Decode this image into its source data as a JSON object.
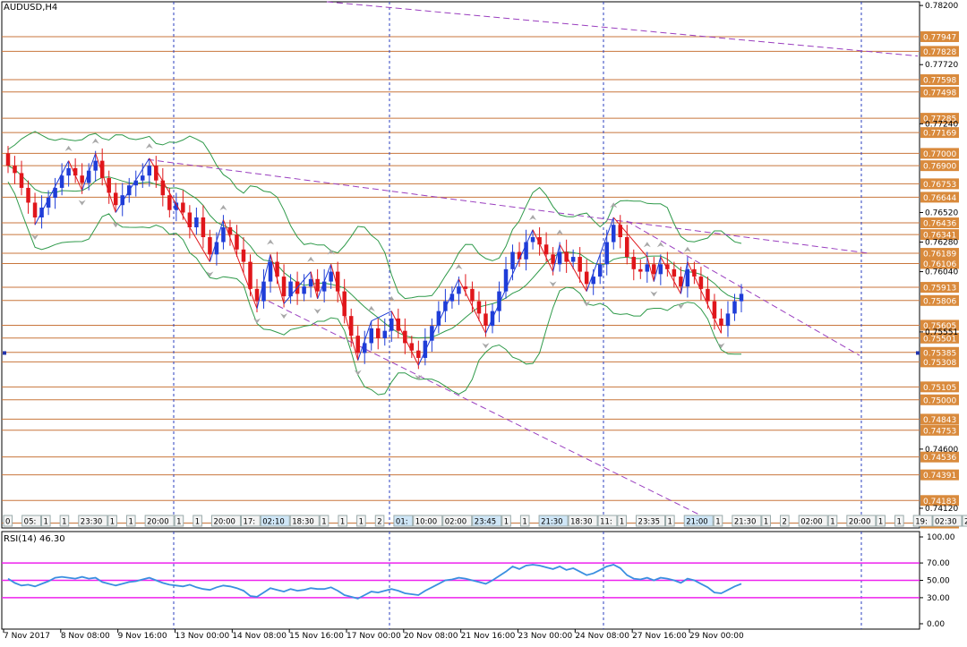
{
  "window": {
    "title": "AUDUSD,H4"
  },
  "indicator": {
    "title": "RSI(14) 46.30"
  },
  "colors": {
    "bull": "#1f3dd8",
    "bear": "#e0161b",
    "level_line": "#c8763c",
    "level_label_bg": "#d98a3c",
    "band": "#2f9a4a",
    "trend": "#9a3fbf",
    "zigzag_red": "#e0161b",
    "zigzag_blue": "#1f3dd8",
    "grid": "#2b3fbf",
    "rsi_line": "#3a8fe0",
    "rsi_level": "#ee22ee"
  },
  "price_axis": {
    "ticks": [
      "0.78200",
      "0.77720",
      "0.77240",
      "0.76520",
      "0.76280",
      "0.76040",
      "0.75551",
      "0.74600",
      "0.74120"
    ]
  },
  "level_labels": [
    "0.77947",
    "0.77828",
    "0.77598",
    "0.77498",
    "0.77285",
    "0.77169",
    "0.77000",
    "0.76900",
    "0.76753",
    "0.76644",
    "0.76436",
    "0.76341",
    "0.76189",
    "0.76106",
    "0.75913",
    "0.75806",
    "0.75605",
    "0.75501",
    "0.75385",
    "0.75308",
    "0.75105",
    "0.75000",
    "0.74843",
    "0.74753",
    "0.74536",
    "0.74391",
    "0.74183",
    "0.74000"
  ],
  "time_axis": {
    "labels": [
      "7 Nov 2017",
      "8 Nov 08:00",
      "9 Nov 16:00",
      "13 Nov 00:00",
      "14 Nov 08:00",
      "15 Nov 16:00",
      "17 Nov 00:00",
      "20 Nov 08:00",
      "21 Nov 16:00",
      "23 Nov 00:00",
      "24 Nov 08:00",
      "27 Nov 16:00",
      "29 Nov 00:00"
    ]
  },
  "time_strip": [
    "0",
    "05:",
    "1",
    "1",
    "23:30",
    "1",
    "1",
    "20:00",
    "1",
    "1",
    "20:00",
    "17:",
    "02:10",
    "18:30",
    "1",
    "1",
    "1",
    "2",
    "01:",
    "10:00",
    "02:00",
    "23:45",
    "1",
    "1",
    "21:30",
    "18:30",
    "11:",
    "1",
    "23:35",
    "1",
    "21:00",
    "1",
    "21:30",
    "1",
    "2",
    "02:00",
    "1",
    "20:00",
    "1",
    "1",
    "19:",
    "02:30",
    "20",
    "02:00",
    "17:15"
  ],
  "rsi_axis": {
    "ticks": [
      "100.00",
      "70.00",
      "50.00",
      "30.00",
      "0.00"
    ]
  },
  "chart_data": [
    {
      "type": "candlestick",
      "title": "AUDUSD,H4",
      "symbol": "AUDUSD",
      "timeframe": "H4",
      "ylim": [
        0.7396,
        0.7823
      ],
      "x_labels": [
        "7 Nov 2017",
        "8 Nov 08:00",
        "9 Nov 16:00",
        "13 Nov 00:00",
        "14 Nov 08:00",
        "15 Nov 16:00",
        "17 Nov 00:00",
        "20 Nov 08:00",
        "21 Nov 16:00",
        "23 Nov 00:00",
        "24 Nov 08:00",
        "27 Nov 16:00",
        "29 Nov 00:00"
      ],
      "horizontal_levels": [
        0.77947,
        0.77828,
        0.77598,
        0.77498,
        0.77285,
        0.77169,
        0.77,
        0.769,
        0.76753,
        0.76644,
        0.76436,
        0.76341,
        0.76189,
        0.76106,
        0.75913,
        0.75806,
        0.75605,
        0.75501,
        0.75385,
        0.75308,
        0.75105,
        0.75,
        0.74843,
        0.74753,
        0.74536,
        0.74391,
        0.74183,
        0.74
      ],
      "close_path": [
        0.769,
        0.7684,
        0.7672,
        0.766,
        0.7648,
        0.7656,
        0.7664,
        0.7672,
        0.7682,
        0.7688,
        0.7682,
        0.7676,
        0.7686,
        0.7694,
        0.768,
        0.7668,
        0.7658,
        0.7666,
        0.7674,
        0.7678,
        0.7682,
        0.769,
        0.7678,
        0.7666,
        0.7654,
        0.766,
        0.7652,
        0.764,
        0.7648,
        0.7632,
        0.7618,
        0.7628,
        0.764,
        0.7634,
        0.7622,
        0.7612,
        0.759,
        0.758,
        0.7596,
        0.7612,
        0.76,
        0.7584,
        0.7596,
        0.7586,
        0.7592,
        0.7598,
        0.7588,
        0.7596,
        0.7604,
        0.7588,
        0.7568,
        0.7552,
        0.7538,
        0.7546,
        0.7558,
        0.755,
        0.7556,
        0.7566,
        0.7556,
        0.7546,
        0.754,
        0.7534,
        0.7548,
        0.756,
        0.7572,
        0.758,
        0.7586,
        0.7592,
        0.759,
        0.758,
        0.757,
        0.756,
        0.7572,
        0.7588,
        0.7606,
        0.762,
        0.7614,
        0.7628,
        0.7632,
        0.7626,
        0.7618,
        0.761,
        0.762,
        0.7612,
        0.7616,
        0.7604,
        0.7594,
        0.76,
        0.761,
        0.7628,
        0.7642,
        0.7632,
        0.7616,
        0.7606,
        0.7604,
        0.761,
        0.7602,
        0.761,
        0.7606,
        0.76,
        0.7592,
        0.7606,
        0.76,
        0.759,
        0.758,
        0.7566,
        0.756,
        0.757,
        0.758,
        0.7586
      ],
      "trendlines": "descending channel, dashed",
      "indicators": [
        "Bollinger Bands",
        "ZigZag",
        "Fractals"
      ],
      "grid": true
    },
    {
      "type": "line",
      "title": "RSI(14) 46.30",
      "ylim": [
        0,
        100
      ],
      "y_ticks": [
        100,
        70,
        50,
        30,
        0
      ],
      "levels": [
        70,
        50,
        30
      ],
      "last_value": 46.3,
      "values": [
        52,
        47,
        44,
        45,
        43,
        46,
        49,
        53,
        54,
        53,
        52,
        54,
        52,
        53,
        48,
        46,
        44,
        46,
        48,
        49,
        51,
        53,
        50,
        47,
        45,
        44,
        43,
        45,
        42,
        40,
        39,
        42,
        44,
        43,
        41,
        38,
        32,
        31,
        36,
        41,
        39,
        37,
        40,
        38,
        39,
        41,
        40,
        40,
        42,
        38,
        33,
        31,
        29,
        33,
        37,
        36,
        38,
        40,
        38,
        35,
        34,
        33,
        38,
        42,
        46,
        50,
        51,
        53,
        52,
        50,
        48,
        46,
        50,
        55,
        60,
        66,
        63,
        67,
        68,
        67,
        65,
        63,
        66,
        62,
        64,
        60,
        56,
        58,
        62,
        66,
        68,
        64,
        56,
        52,
        51,
        53,
        50,
        53,
        52,
        50,
        47,
        52,
        50,
        46,
        42,
        36,
        35,
        39,
        43,
        46
      ]
    }
  ]
}
